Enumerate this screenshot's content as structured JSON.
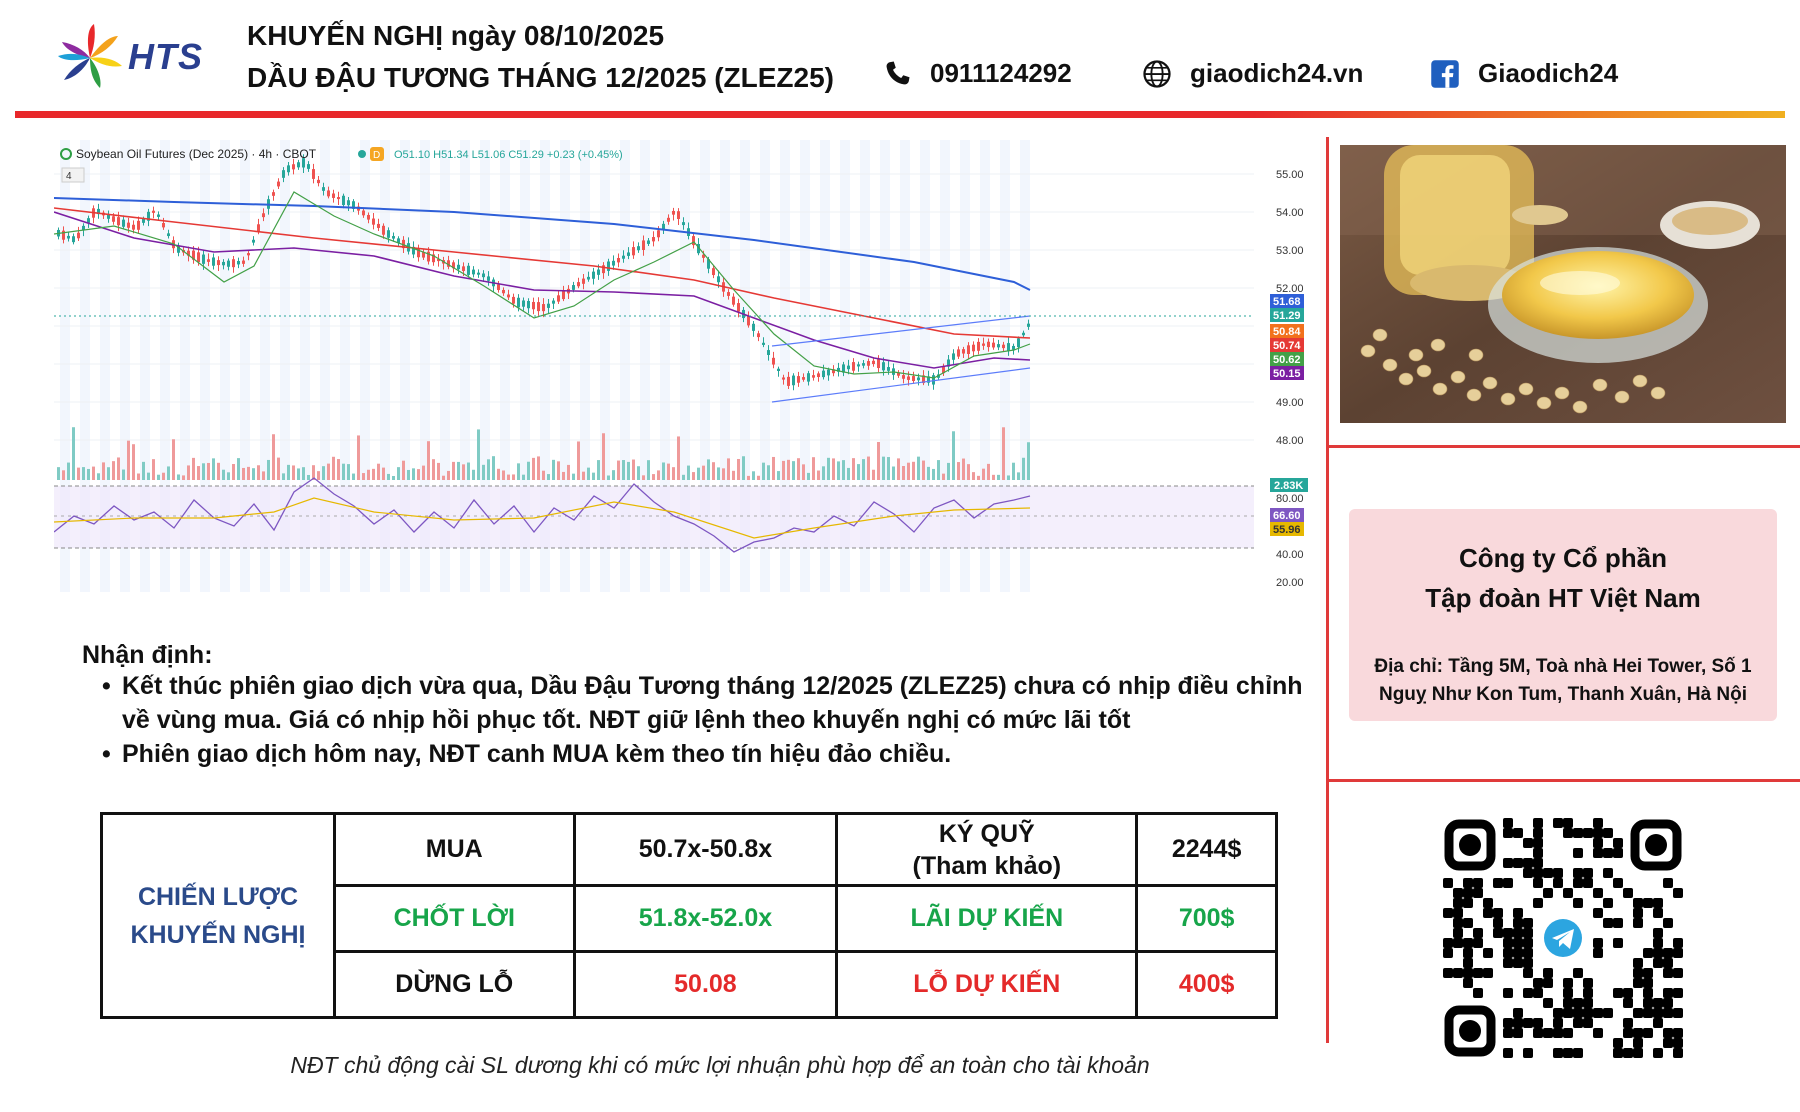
{
  "header": {
    "brand": "HTS",
    "title_line1": "KHUYẾN NGHỊ ngày 08/10/2025",
    "title_line2": "DẦU ĐẬU TƯƠNG THÁNG 12/2025 (ZLEZ25)",
    "phone": "0911124292",
    "website": "giaodich24.vn",
    "facebook": "Giaodich24",
    "icons": [
      "phone-icon",
      "globe-icon",
      "facebook-icon"
    ],
    "line_colors": [
      "#e8282b",
      "#f0b020"
    ]
  },
  "chart": {
    "header_text": "Soybean Oil Futures (Dec 2025) · 4h · CBOT",
    "ohlc_text": "O51.10 H51.34 L51.06 C51.29 +0.23 (+0.45%)",
    "interval_badge": "4",
    "price_ticks": [
      "55.00",
      "54.00",
      "53.00",
      "52.00",
      "49.00",
      "48.00"
    ],
    "price_labels": [
      {
        "text": "51.68",
        "color": "#2e5fd8"
      },
      {
        "text": "51.29",
        "color": "#26a69a"
      },
      {
        "text": "50.84",
        "color": "#f2711c"
      },
      {
        "text": "50.74",
        "color": "#e53935"
      },
      {
        "text": "50.62",
        "color": "#43a047"
      },
      {
        "text": "50.15",
        "color": "#7b1fa2"
      }
    ],
    "volume_label": "2.83K",
    "rsi_ticks": [
      "80.00",
      "40.00",
      "20.00"
    ],
    "rsi_labels": [
      {
        "text": "66.60",
        "color": "#7e57c2"
      },
      {
        "text": "55.96",
        "color": "#e6b800"
      }
    ]
  },
  "analysis": {
    "title": "Nhận định:",
    "bullets": [
      "Kết thúc phiên giao dịch vừa qua, Dầu Đậu Tương tháng 12/2025 (ZLEZ25) chưa có nhịp điều chỉnh về vùng mua. Giá có nhịp hồi phục tốt. NĐT giữ lệnh theo khuyến nghị có mức lãi tốt",
      "Phiên giao dịch hôm nay, NĐT canh MUA kèm theo tín hiệu đảo chiều."
    ]
  },
  "strategy": {
    "lead_line1": "CHIẾN LƯỢC",
    "lead_line2": "KHUYẾN NGHỊ",
    "buy_label": "MUA",
    "buy_range": "50.7x-50.8x",
    "margin_line1": "KÝ QUỸ",
    "margin_line2": "(Tham khảo)",
    "margin_value": "2244$",
    "tp_label": "CHỐT LỜI",
    "tp_range": "51.8x-52.0x",
    "profit_label": "LÃI DỰ KIẾN",
    "profit_value": "700$",
    "sl_label": "DỪNG LỖ",
    "sl_value": "50.08",
    "loss_label": "LỖ DỰ KIẾN",
    "loss_value": "400$"
  },
  "note": "NĐT chủ động cài SL dương khi có mức lợi nhuận phù hợp để an toàn cho tài khoản",
  "company": {
    "name_line1": "Công ty Cổ phần",
    "name_line2": "Tập đoàn HT Việt Nam",
    "address": "Địa chỉ: Tầng 5M, Toà nhà Hei Tower, Số 1 Nguỵ Như Kon Tum, Thanh Xuân, Hà Nội"
  },
  "qr": {
    "icon": "telegram-icon"
  }
}
